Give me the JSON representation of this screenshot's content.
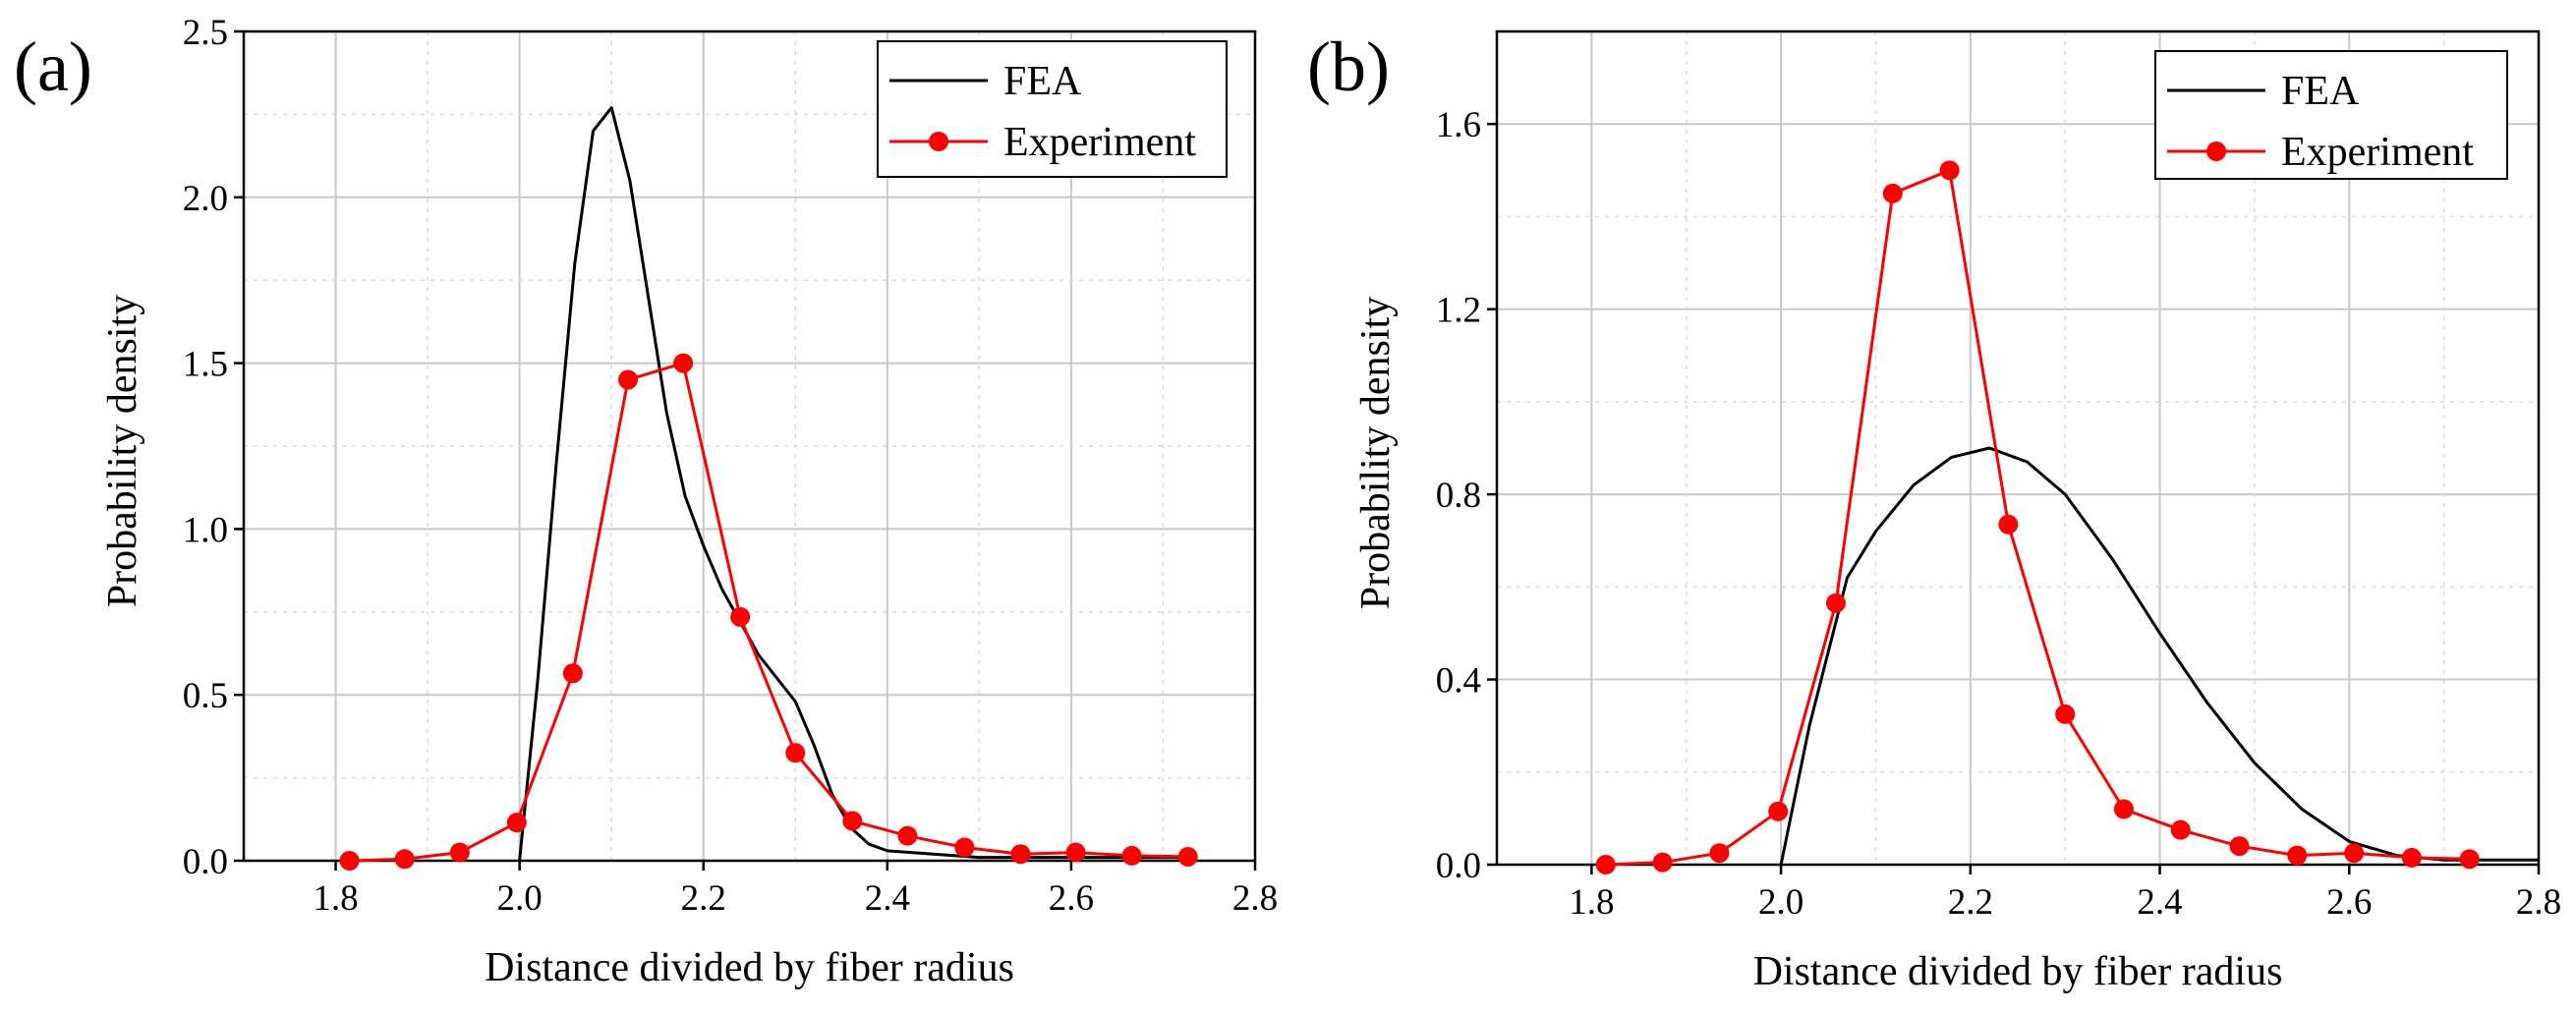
{
  "chart_data": [
    {
      "type": "line",
      "panel_label": "(a)",
      "title": "",
      "xlabel": "Distance divided by fiber radius",
      "ylabel": "Probability density",
      "xlim": [
        1.7,
        2.8
      ],
      "ylim": [
        0,
        2.5
      ],
      "xticks": [
        1.8,
        2.0,
        2.2,
        2.4,
        2.6,
        2.8
      ],
      "xtick_labels": [
        "1.8",
        "2.0",
        "2.2",
        "2.4",
        "2.6",
        "2.8"
      ],
      "yticks": [
        0.0,
        0.5,
        1.0,
        1.5,
        2.0,
        2.5
      ],
      "ytick_labels": [
        "0.0",
        "0.5",
        "1.0",
        "1.5",
        "2.0",
        "2.5"
      ],
      "grid": true,
      "legend_position": "top-right",
      "series": [
        {
          "name": "FEA",
          "color": "#000000",
          "marker": "none",
          "x": [
            2.0,
            2.02,
            2.04,
            2.06,
            2.08,
            2.1,
            2.12,
            2.14,
            2.16,
            2.18,
            2.2,
            2.22,
            2.24,
            2.26,
            2.28,
            2.3,
            2.32,
            2.34,
            2.36,
            2.38,
            2.4,
            2.45,
            2.5,
            2.6,
            2.7,
            2.73
          ],
          "y": [
            0.0,
            0.55,
            1.2,
            1.8,
            2.2,
            2.27,
            2.05,
            1.7,
            1.35,
            1.1,
            0.95,
            0.82,
            0.72,
            0.62,
            0.55,
            0.48,
            0.35,
            0.2,
            0.1,
            0.05,
            0.03,
            0.02,
            0.01,
            0.01,
            0.01,
            0.01
          ]
        },
        {
          "name": "Experiment",
          "color": "#ff0000",
          "marker": "circle",
          "x": [
            1.815,
            1.875,
            1.935,
            1.997,
            2.058,
            2.118,
            2.178,
            2.24,
            2.3,
            2.362,
            2.422,
            2.484,
            2.545,
            2.605,
            2.666,
            2.727
          ],
          "y": [
            0.0,
            0.005,
            0.025,
            0.115,
            0.565,
            1.45,
            1.5,
            0.735,
            0.325,
            0.12,
            0.075,
            0.04,
            0.02,
            0.025,
            0.015,
            0.012
          ]
        }
      ]
    },
    {
      "type": "line",
      "panel_label": "(b)",
      "title": "",
      "xlabel": "Distance divided by fiber radius",
      "ylabel": "Probability density",
      "xlim": [
        1.7,
        2.8
      ],
      "ylim": [
        0,
        1.8
      ],
      "xticks": [
        1.8,
        2.0,
        2.2,
        2.4,
        2.6,
        2.8
      ],
      "xtick_labels": [
        "1.8",
        "2.0",
        "2.2",
        "2.4",
        "2.6",
        "2.8"
      ],
      "yticks": [
        0.0,
        0.4,
        0.8,
        1.2,
        1.6
      ],
      "ytick_labels": [
        "0.0",
        "0.4",
        "0.8",
        "1.2",
        "1.6"
      ],
      "grid": true,
      "legend_position": "top-right",
      "series": [
        {
          "name": "FEA",
          "color": "#000000",
          "marker": "none",
          "x": [
            2.0,
            2.03,
            2.07,
            2.1,
            2.14,
            2.18,
            2.22,
            2.26,
            2.3,
            2.35,
            2.4,
            2.45,
            2.5,
            2.55,
            2.6,
            2.65,
            2.7,
            2.8
          ],
          "y": [
            0.0,
            0.3,
            0.62,
            0.72,
            0.82,
            0.88,
            0.9,
            0.87,
            0.8,
            0.66,
            0.5,
            0.35,
            0.22,
            0.12,
            0.05,
            0.02,
            0.01,
            0.01
          ]
        },
        {
          "name": "Experiment",
          "color": "#ff0000",
          "marker": "circle",
          "x": [
            1.815,
            1.875,
            1.935,
            1.997,
            2.058,
            2.118,
            2.178,
            2.24,
            2.3,
            2.362,
            2.422,
            2.484,
            2.545,
            2.605,
            2.666,
            2.727
          ],
          "y": [
            0.0,
            0.005,
            0.025,
            0.115,
            0.565,
            1.45,
            1.5,
            0.735,
            0.325,
            0.12,
            0.075,
            0.04,
            0.02,
            0.025,
            0.015,
            0.012
          ]
        }
      ]
    }
  ]
}
